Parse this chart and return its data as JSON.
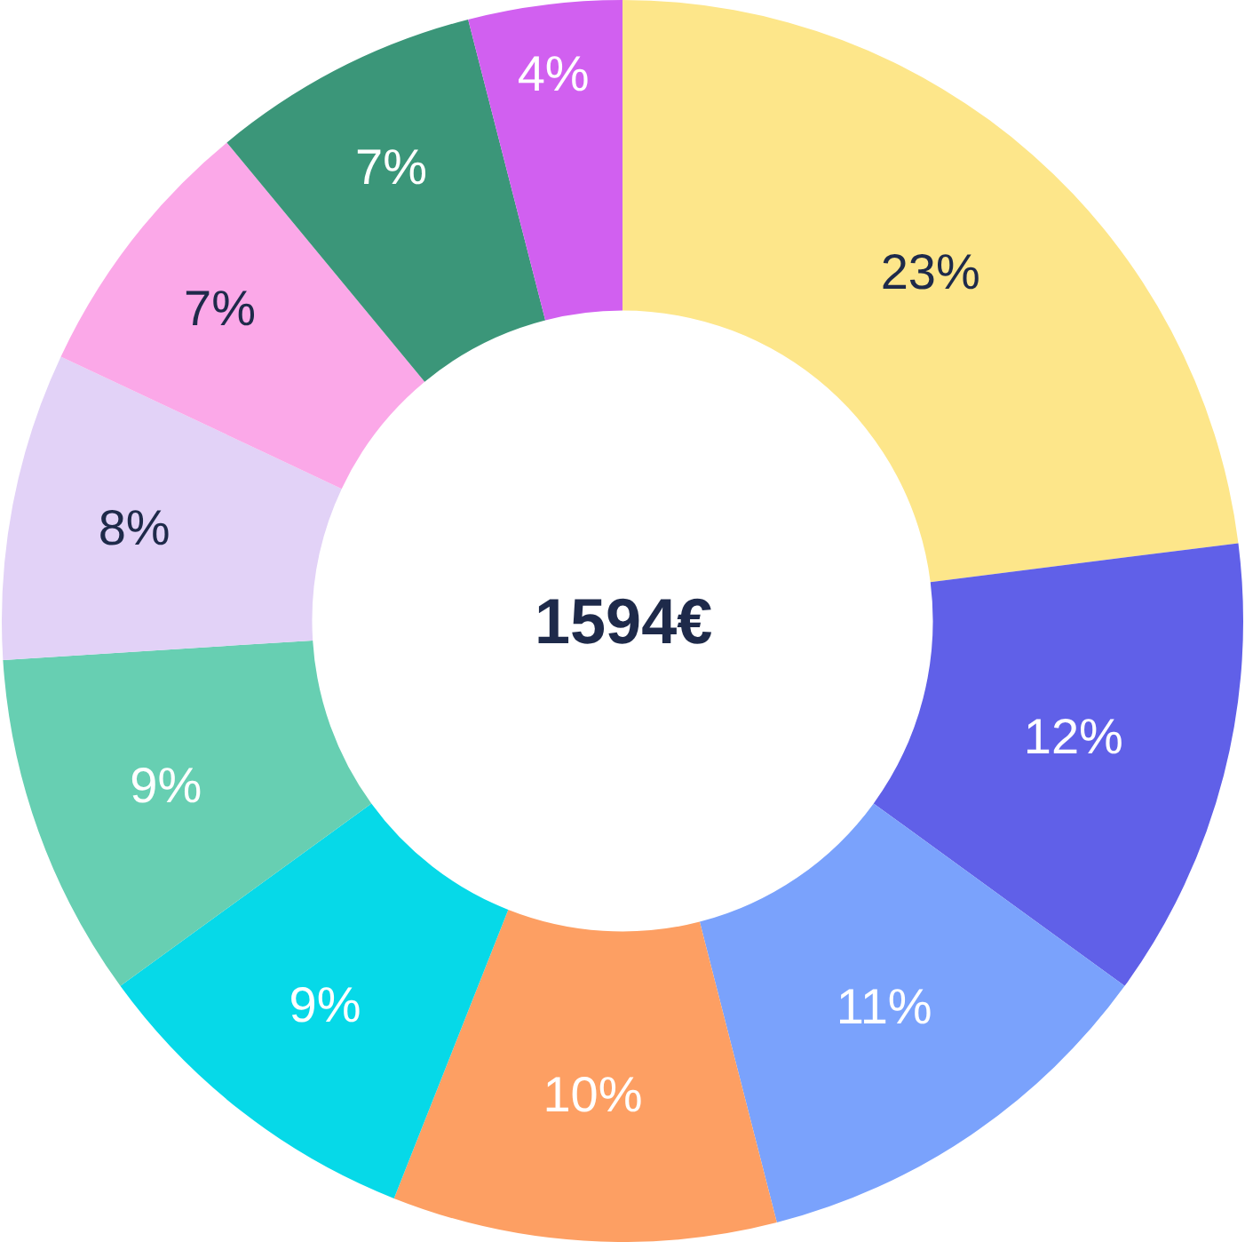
{
  "chart_data": {
    "type": "donut",
    "categories": [
      null,
      null,
      null,
      null,
      null,
      null,
      null,
      null,
      null,
      null
    ],
    "values": [
      23,
      12,
      11,
      10,
      9,
      9,
      8,
      7,
      7,
      4
    ],
    "colors": [
      "#fde68a",
      "#6060e8",
      "#7aa2fc",
      "#fd9f63",
      "#06d9e8",
      "#67cfb2",
      "#e2d2f7",
      "#fba8e8",
      "#3b9679",
      "#d160f0"
    ],
    "value_labels": [
      "23%",
      "12%",
      "11%",
      "10%",
      "9%",
      "9%",
      "8%",
      "7%",
      "7%",
      "4%"
    ],
    "annotations": [
      "1594€"
    ],
    "legend": false
  }
}
